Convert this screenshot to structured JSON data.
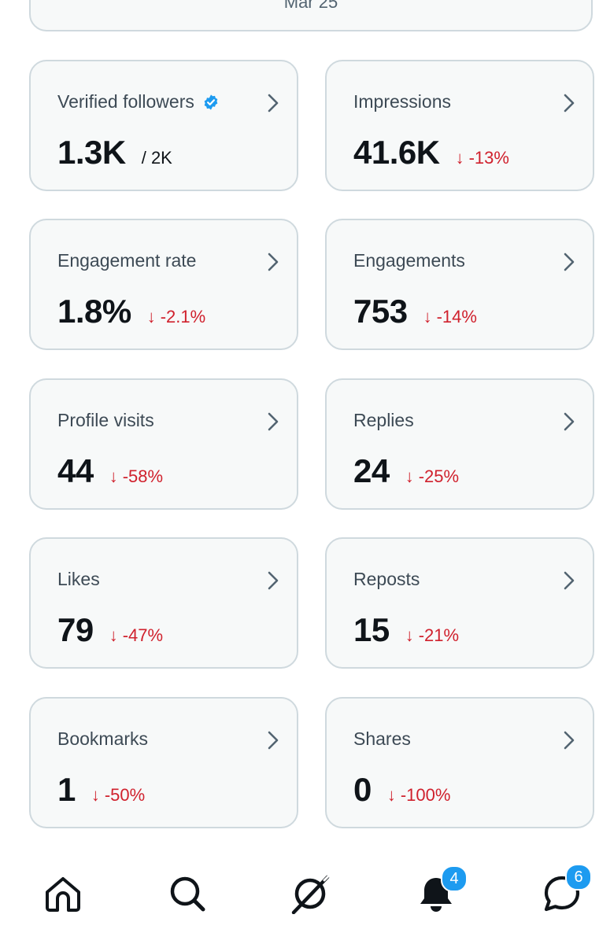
{
  "header": {
    "date_label": "Mar 25"
  },
  "cards": [
    {
      "title": "Verified followers",
      "value": "1.3K",
      "sub": "/ 2K",
      "verified": true
    },
    {
      "title": "Impressions",
      "value": "41.6K",
      "change": "-13%"
    },
    {
      "title": "Engagement rate",
      "value": "1.8%",
      "change": "-2.1%"
    },
    {
      "title": "Engagements",
      "value": "753",
      "change": "-14%"
    },
    {
      "title": "Profile visits",
      "value": "44",
      "change": "-58%"
    },
    {
      "title": "Replies",
      "value": "24",
      "change": "-25%"
    },
    {
      "title": "Likes",
      "value": "79",
      "change": "-47%"
    },
    {
      "title": "Reposts",
      "value": "15",
      "change": "-21%"
    },
    {
      "title": "Bookmarks",
      "value": "1",
      "change": "-50%"
    },
    {
      "title": "Shares",
      "value": "0",
      "change": "-100%"
    }
  ],
  "change_arrow": "↓",
  "nav": {
    "items": [
      "home-icon",
      "search-icon",
      "grok-icon",
      "bell-icon",
      "messages-icon"
    ],
    "notifications_badge": "4",
    "messages_badge": "6"
  },
  "colors": {
    "accent": "#1d9bf0",
    "negative": "#d0212d",
    "card_bg": "#f7f9f9",
    "card_border": "#cfd9de"
  }
}
